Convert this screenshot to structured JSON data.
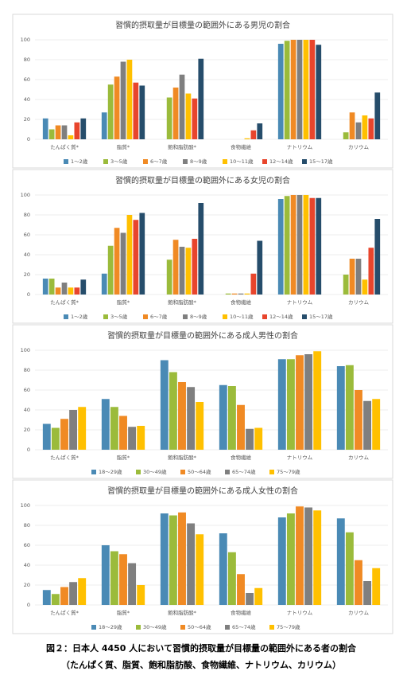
{
  "chart_data": [
    {
      "type": "bar",
      "title": "習慣的摂取量が目標量の範囲外にある男児の割合",
      "categories": [
        "たんぱく質*",
        "脂質*",
        "飽和脂肪酸*",
        "食物繊維",
        "ナトリウム",
        "カリウム"
      ],
      "series": [
        {
          "name": "1～2歳",
          "color": "#4a8ab5",
          "values": [
            21,
            27,
            null,
            null,
            96,
            null
          ]
        },
        {
          "name": "3～5歳",
          "color": "#9bbb3b",
          "values": [
            10,
            55,
            42,
            null,
            99,
            7
          ]
        },
        {
          "name": "6～7歳",
          "color": "#f08a24",
          "values": [
            14,
            63,
            52,
            null,
            100,
            27
          ]
        },
        {
          "name": "8～9歳",
          "color": "#7f7f7f",
          "values": [
            14,
            78,
            65,
            null,
            100,
            17
          ]
        },
        {
          "name": "10～11歳",
          "color": "#ffc000",
          "values": [
            4,
            80,
            46,
            1,
            100,
            24
          ]
        },
        {
          "name": "12～14歳",
          "color": "#e8452c",
          "values": [
            17,
            57,
            41,
            9,
            100,
            21
          ]
        },
        {
          "name": "15～17歳",
          "color": "#264d6b",
          "values": [
            21,
            54,
            81,
            16,
            95,
            47
          ]
        }
      ],
      "ylim": [
        0,
        100
      ],
      "yticks": [
        0,
        20,
        40,
        60,
        80,
        100
      ],
      "grid": true,
      "legend": "bottom"
    },
    {
      "type": "bar",
      "title": "習慣的摂取量が目標量の範囲外にある女児の割合",
      "categories": [
        "たんぱく質*",
        "脂質*",
        "飽和脂肪酸*",
        "食物繊維",
        "ナトリウム",
        "カリウム"
      ],
      "series": [
        {
          "name": "1～2歳",
          "color": "#4a8ab5",
          "values": [
            16,
            21,
            null,
            null,
            96,
            null
          ]
        },
        {
          "name": "3～5歳",
          "color": "#9bbb3b",
          "values": [
            16,
            49,
            35,
            1,
            99,
            20
          ]
        },
        {
          "name": "6～7歳",
          "color": "#f08a24",
          "values": [
            7,
            67,
            55,
            1,
            100,
            36
          ]
        },
        {
          "name": "8～9歳",
          "color": "#7f7f7f",
          "values": [
            12,
            62,
            48,
            1,
            100,
            36
          ]
        },
        {
          "name": "10～11歳",
          "color": "#ffc000",
          "values": [
            7,
            80,
            47,
            1,
            100,
            15
          ]
        },
        {
          "name": "12～14歳",
          "color": "#e8452c",
          "values": [
            7,
            75,
            56,
            21,
            97,
            47
          ]
        },
        {
          "name": "15～17歳",
          "color": "#264d6b",
          "values": [
            15,
            82,
            92,
            54,
            97,
            76
          ]
        }
      ],
      "ylim": [
        0,
        100
      ],
      "yticks": [
        0,
        20,
        40,
        60,
        80,
        100
      ],
      "grid": true,
      "legend": "bottom"
    },
    {
      "type": "bar",
      "title": "習慣的摂取量が目標量の範囲外にある成人男性の割合",
      "categories": [
        "たんぱく質*",
        "脂質*",
        "飽和脂肪酸*",
        "食物繊維",
        "ナトリウム",
        "カリウム"
      ],
      "series": [
        {
          "name": "18～29歳",
          "color": "#4a8ab5",
          "values": [
            26,
            51,
            90,
            65,
            91,
            84
          ]
        },
        {
          "name": "30～49歳",
          "color": "#9bbb3b",
          "values": [
            22,
            43,
            78,
            64,
            91,
            85
          ]
        },
        {
          "name": "50～64歳",
          "color": "#f08a24",
          "values": [
            31,
            34,
            68,
            45,
            95,
            60
          ]
        },
        {
          "name": "65～74歳",
          "color": "#7f7f7f",
          "values": [
            40,
            23,
            63,
            21,
            96,
            49
          ]
        },
        {
          "name": "75～79歳",
          "color": "#ffc000",
          "values": [
            43,
            24,
            48,
            22,
            99,
            51
          ]
        }
      ],
      "ylim": [
        0,
        100
      ],
      "yticks": [
        0,
        20,
        40,
        60,
        80,
        100
      ],
      "grid": true,
      "legend": "bottom"
    },
    {
      "type": "bar",
      "title": "習慣的摂取量が目標量の範囲外にある成人女性の割合",
      "categories": [
        "たんぱく質*",
        "脂質*",
        "飽和脂肪酸*",
        "食物繊維",
        "ナトリウム",
        "カリウム"
      ],
      "series": [
        {
          "name": "18～29歳",
          "color": "#4a8ab5",
          "values": [
            15,
            60,
            92,
            72,
            88,
            87
          ]
        },
        {
          "name": "30～49歳",
          "color": "#9bbb3b",
          "values": [
            11,
            54,
            90,
            53,
            92,
            73
          ]
        },
        {
          "name": "50～64歳",
          "color": "#f08a24",
          "values": [
            18,
            51,
            93,
            31,
            99,
            45
          ]
        },
        {
          "name": "65～74歳",
          "color": "#7f7f7f",
          "values": [
            23,
            42,
            82,
            12,
            98,
            24
          ]
        },
        {
          "name": "75～79歳",
          "color": "#ffc000",
          "values": [
            27,
            20,
            71,
            17,
            95,
            37
          ]
        }
      ],
      "ylim": [
        0,
        100
      ],
      "yticks": [
        0,
        20,
        40,
        60,
        80,
        100
      ],
      "grid": true,
      "legend": "bottom"
    }
  ],
  "caption": [
    "図２：日本人 4450 人において習慣的摂取量が目標量の範囲外にある者の割合",
    "（たんぱく質、脂質、飽和脂肪酸、食物繊維、ナトリウム、カリウム）"
  ]
}
